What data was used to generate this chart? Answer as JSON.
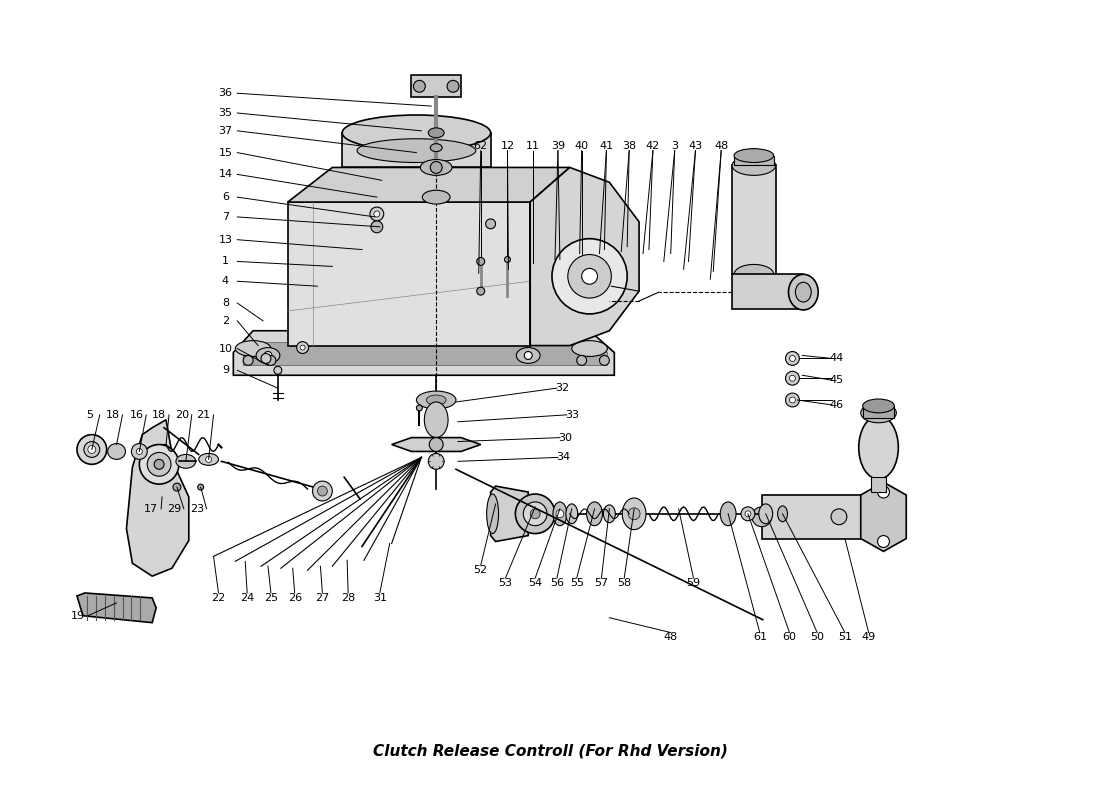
{
  "title": "Clutch Release Controll (For Rhd Version)",
  "bg": "#ffffff",
  "lc": "#000000",
  "fig_w": 11.0,
  "fig_h": 8.0,
  "dpi": 100,
  "ul_labels": [
    [
      "36",
      222,
      90
    ],
    [
      "35",
      222,
      110
    ],
    [
      "37",
      222,
      128
    ],
    [
      "15",
      222,
      150
    ],
    [
      "14",
      222,
      172
    ],
    [
      "6",
      222,
      195
    ],
    [
      "7",
      222,
      215
    ],
    [
      "13",
      222,
      238
    ],
    [
      "1",
      222,
      260
    ],
    [
      "4",
      222,
      280
    ],
    [
      "8",
      222,
      302
    ],
    [
      "2",
      222,
      320
    ],
    [
      "10",
      222,
      348
    ],
    [
      "9",
      222,
      370
    ]
  ],
  "ur_labels": [
    [
      "62",
      480,
      143
    ],
    [
      "12",
      507,
      143
    ],
    [
      "11",
      533,
      143
    ],
    [
      "39",
      558,
      143
    ],
    [
      "40",
      582,
      143
    ],
    [
      "41",
      607,
      143
    ],
    [
      "38",
      630,
      143
    ],
    [
      "42",
      654,
      143
    ],
    [
      "3",
      676,
      143
    ],
    [
      "43",
      697,
      143
    ],
    [
      "48",
      723,
      143
    ]
  ],
  "r_labels": [
    [
      "44",
      840,
      358
    ],
    [
      "45",
      840,
      380
    ],
    [
      "46",
      840,
      405
    ]
  ],
  "bot_labels": [
    [
      "52",
      480,
      572
    ],
    [
      "53",
      505,
      585
    ],
    [
      "54",
      535,
      585
    ],
    [
      "56",
      557,
      585
    ],
    [
      "55",
      577,
      585
    ],
    [
      "57",
      602,
      585
    ],
    [
      "58",
      625,
      585
    ],
    [
      "48",
      672,
      640
    ],
    [
      "59",
      695,
      585
    ],
    [
      "61",
      762,
      640
    ],
    [
      "60",
      792,
      640
    ],
    [
      "50",
      820,
      640
    ],
    [
      "51",
      848,
      640
    ],
    [
      "49",
      872,
      640
    ]
  ],
  "ll_labels": [
    [
      "5",
      85,
      415
    ],
    [
      "18",
      108,
      415
    ],
    [
      "16",
      132,
      415
    ],
    [
      "18",
      155,
      415
    ],
    [
      "20",
      178,
      415
    ],
    [
      "21",
      200,
      415
    ],
    [
      "17",
      147,
      510
    ],
    [
      "29",
      170,
      510
    ],
    [
      "23",
      193,
      510
    ],
    [
      "19",
      73,
      618
    ]
  ],
  "rod_labels": [
    [
      "22",
      215,
      600
    ],
    [
      "24",
      244,
      600
    ],
    [
      "25",
      268,
      600
    ],
    [
      "26",
      292,
      600
    ],
    [
      "27",
      320,
      600
    ],
    [
      "28",
      346,
      600
    ],
    [
      "31",
      378,
      600
    ]
  ],
  "cl_labels": [
    [
      "32",
      562,
      388
    ],
    [
      "33",
      572,
      415
    ],
    [
      "30",
      565,
      438
    ],
    [
      "34",
      563,
      458
    ]
  ]
}
